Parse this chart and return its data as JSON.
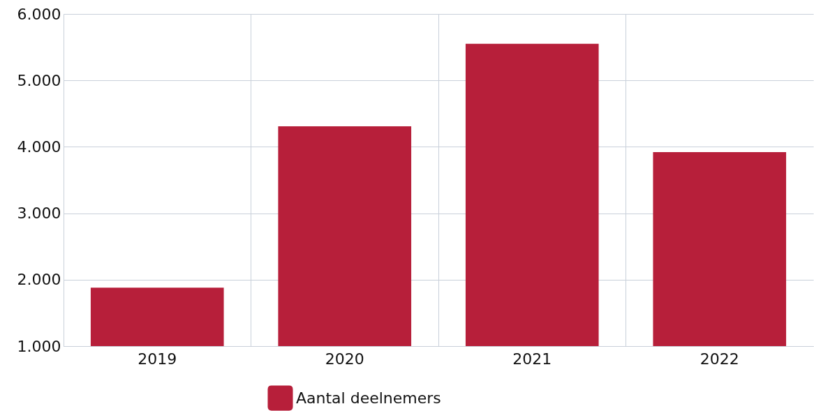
{
  "chart_data": {
    "type": "bar",
    "categories": [
      "2019",
      "2020",
      "2021",
      "2022"
    ],
    "series": [
      {
        "name": "Aantal deelnemers",
        "color": "#b71f3a",
        "values": [
          1880,
          4310,
          5550,
          3920
        ]
      }
    ],
    "ylim": [
      1000,
      6000
    ],
    "yticks": [
      {
        "value": 1000,
        "label": "1.000"
      },
      {
        "value": 2000,
        "label": "2.000"
      },
      {
        "value": 3000,
        "label": "3.000"
      },
      {
        "value": 4000,
        "label": "4.000"
      },
      {
        "value": 5000,
        "label": "5.000"
      },
      {
        "value": 6000,
        "label": "6.000"
      }
    ],
    "grid": true,
    "legend": "bottom"
  }
}
